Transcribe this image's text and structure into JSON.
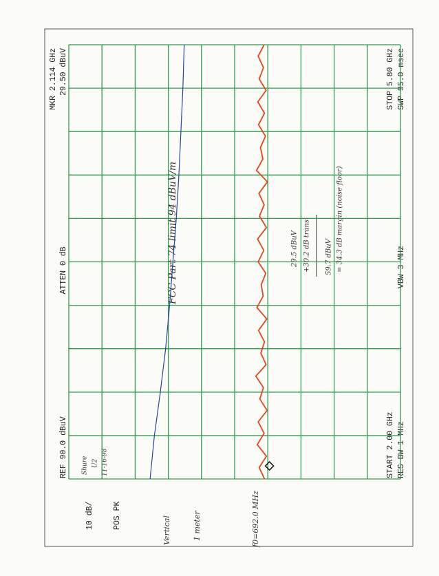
{
  "chart_data": {
    "type": "line",
    "xlim": [
      2.0,
      5.8
    ],
    "ylim": [
      -10,
      90
    ],
    "xticks": [
      2.0,
      2.38,
      2.76,
      3.14,
      3.52,
      3.9,
      4.28,
      4.66,
      5.04,
      5.42,
      5.8
    ],
    "yticks": [
      -10,
      0,
      10,
      20,
      30,
      40,
      50,
      60,
      70,
      80,
      90
    ],
    "grid": true,
    "grid_color": "#2e9a4c",
    "ref_label": "REF 90.0 dBuV",
    "scale_label": "10 dB/",
    "detector_label": "POS PK",
    "atten_label": "ATTEN 0 dB",
    "start_label": "START 2.00 GHz",
    "stop_label": "STOP 5.80 GHz",
    "res_bw_label": "RES BW 1 MHz",
    "vbw_label": "VBW 3 MHz",
    "sweep_label": "SWP 95.0 msec",
    "marker": {
      "x": 2.114,
      "y": 29.5,
      "x_label": "MKR 2.114 GHz",
      "y_label": "29.50 dBuV"
    },
    "trace": {
      "color": "#e2461e",
      "x": [
        2.0,
        2.1,
        2.2,
        2.3,
        2.4,
        2.5,
        2.6,
        2.7,
        2.8,
        2.9,
        3.0,
        3.1,
        3.2,
        3.3,
        3.4,
        3.5,
        3.6,
        3.7,
        3.8,
        3.9,
        4.0,
        4.1,
        4.2,
        4.3,
        4.4,
        4.5,
        4.6,
        4.7,
        4.8,
        4.9,
        5.0,
        5.1,
        5.2,
        5.3,
        5.4,
        5.5,
        5.6,
        5.7,
        5.8
      ],
      "values": [
        31.0,
        32.6,
        30.4,
        33.2,
        31.1,
        32.9,
        30.2,
        32.4,
        31.3,
        33.6,
        30.5,
        32.1,
        31.0,
        32.8,
        30.3,
        33.3,
        31.4,
        32.0,
        30.6,
        32.9,
        31.2,
        33.1,
        30.4,
        32.5,
        31.1,
        32.7,
        30.1,
        33.4,
        31.5,
        32.2,
        30.7,
        32.8,
        31.0,
        33.0,
        30.5,
        32.6,
        31.3,
        32.9,
        31.1
      ]
    },
    "limit_line": {
      "color": "#24449c",
      "x": [
        2.0,
        2.38,
        2.76,
        3.14,
        3.52,
        3.9,
        4.28,
        4.66,
        5.04,
        5.42,
        5.8
      ],
      "values": [
        65.5,
        64.2,
        62.4,
        60.8,
        59.6,
        58.6,
        57.6,
        56.8,
        56.2,
        55.6,
        55.2
      ]
    },
    "annotations": {
      "device": "Shure",
      "model": "U2",
      "date": "11-16-98",
      "limit": "FCC Part 74  limit 94 dBuV/m",
      "polarization": "Vertical",
      "distance": "1 meter",
      "fundamental": "f0=692.0 MHz",
      "reading": "29.5 dBuV",
      "transducer": "+30.2 dB trans.",
      "corrected": "59.7 dBuV",
      "margin": "= 34.3 dB margin (noise floor)"
    }
  }
}
